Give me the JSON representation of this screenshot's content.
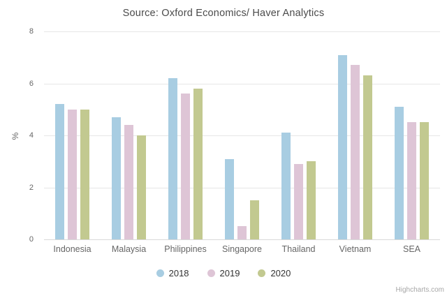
{
  "title": "Source: Oxford Economics/ Haver Analytics",
  "credit": "Highcharts.com",
  "y_axis": {
    "label": "%",
    "ticks": [
      0,
      2,
      4,
      6,
      8
    ],
    "max": 8
  },
  "colors": {
    "gridline": "#e6e6e6",
    "axis_line": "#d9d9d9",
    "tick_text": "#666666",
    "legend_text": "#333333",
    "title_text": "#4a4a4a",
    "credit_text": "#a7a7a7"
  },
  "chart_data": {
    "type": "bar",
    "title": "Source: Oxford Economics/ Haver Analytics",
    "categories": [
      "Indonesia",
      "Malaysia",
      "Philippines",
      "Singapore",
      "Thailand",
      "Vietnam",
      "SEA"
    ],
    "series": [
      {
        "name": "2018",
        "color": "#A8CDE2",
        "values": [
          5.2,
          4.7,
          6.2,
          3.1,
          4.1,
          7.1,
          5.1
        ]
      },
      {
        "name": "2019",
        "color": "#DEC5D6",
        "values": [
          5.0,
          4.4,
          5.6,
          0.5,
          2.9,
          6.7,
          4.5
        ]
      },
      {
        "name": "2020",
        "color": "#C2C990",
        "values": [
          5.0,
          4.0,
          5.8,
          1.5,
          3.0,
          6.3,
          4.5
        ]
      }
    ],
    "xlabel": "",
    "ylabel": "%",
    "ylim": [
      0,
      8
    ],
    "grid": true,
    "legend_position": "bottom"
  }
}
